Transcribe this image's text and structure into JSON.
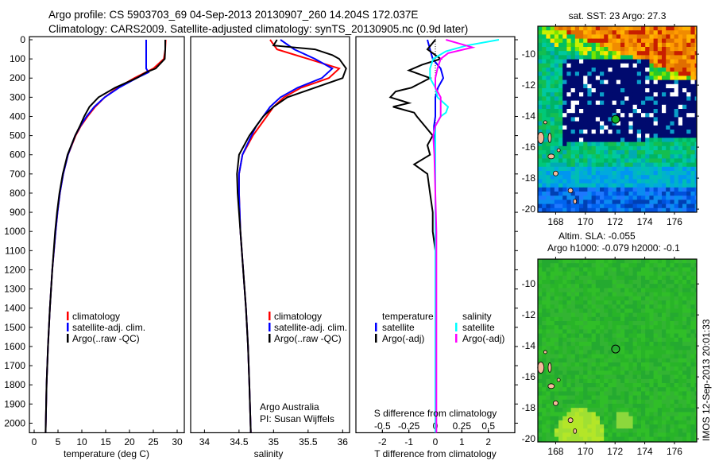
{
  "header": {
    "line1": "Argo profile: CS 5903703_69 04-Sep-2013 20130907_260 14.204S 172.037E",
    "line2": "Climatology: CARS2009. Satellite-adjusted climatology: synTS_20130905.nc (0.9d later)"
  },
  "depth_ticks": [
    "0",
    "100",
    "200",
    "300",
    "400",
    "500",
    "600",
    "700",
    "800",
    "900",
    "1000",
    "1100",
    "1200",
    "1300",
    "1400",
    "1500",
    "1600",
    "1700",
    "1800",
    "1900",
    "2000"
  ],
  "chart_data": [
    {
      "type": "line",
      "name": "temperature-profile",
      "xlabel": "temperature (deg C)",
      "ylabel": "depth",
      "xlim": [
        -1,
        31.5
      ],
      "ylim": [
        2050,
        0
      ],
      "xticks": [
        0,
        5,
        10,
        15,
        20,
        25,
        30
      ],
      "xtick_labels": [
        "0",
        "5",
        "10",
        "15",
        "20",
        "25",
        "30"
      ],
      "legend": {
        "placement": "bottom-left",
        "entries": [
          "climatology",
          "satellite-adj. clim.",
          "Argo(..raw -QC)"
        ]
      },
      "series": [
        {
          "name": "climatology",
          "color": "#ff0000",
          "depth": [
            0,
            50,
            100,
            150,
            200,
            250,
            300,
            350,
            400,
            450,
            500,
            600,
            700,
            800,
            900,
            1000,
            1200,
            1400,
            1600,
            1800,
            2050
          ],
          "values": [
            27.6,
            27.5,
            27.2,
            25.0,
            21.0,
            17.5,
            14.8,
            12.8,
            11.2,
            9.8,
            8.7,
            7.1,
            6.1,
            5.4,
            4.9,
            4.5,
            3.8,
            3.3,
            2.9,
            2.6,
            2.4
          ]
        },
        {
          "name": "satellite-adj. clim.",
          "color": "#0000ff",
          "depth": [
            0,
            50,
            100,
            150,
            170,
            200,
            250,
            300,
            350,
            400,
            450,
            500,
            600,
            700,
            800,
            900,
            1000,
            1200,
            1400,
            1600,
            1800,
            2050
          ],
          "values": [
            23.5,
            23.5,
            23.5,
            23.5,
            24.0,
            21.5,
            17.8,
            14.8,
            12.6,
            11.0,
            9.7,
            8.6,
            7.1,
            6.1,
            5.4,
            4.9,
            4.5,
            3.8,
            3.3,
            2.9,
            2.6,
            2.4
          ]
        },
        {
          "name": "Argo(..raw -QC)",
          "color": "#000000",
          "depth": [
            0,
            50,
            100,
            150,
            170,
            200,
            250,
            300,
            350,
            400,
            450,
            500,
            600,
            700,
            800,
            900,
            1000,
            1200,
            1400,
            1600,
            1800,
            2050
          ],
          "values": [
            27.5,
            27.5,
            27.4,
            25.5,
            23.5,
            21.5,
            17.0,
            13.5,
            11.6,
            10.5,
            9.6,
            8.6,
            7.0,
            6.0,
            5.3,
            4.8,
            4.4,
            3.8,
            3.3,
            2.9,
            2.6,
            2.4
          ]
        }
      ]
    },
    {
      "type": "line",
      "name": "salinity-profile",
      "xlabel": "salinity",
      "xlim": [
        33.8,
        36.1
      ],
      "ylim": [
        2050,
        0
      ],
      "xticks": [
        34,
        34.5,
        35,
        35.5,
        36
      ],
      "xtick_labels": [
        "34",
        "34.5",
        "35",
        "35.5",
        "36"
      ],
      "legend": {
        "placement": "bottom-right",
        "entries": [
          "climatology",
          "satellite-adj. clim.",
          "Argo(..raw -QC)"
        ]
      },
      "annotation": [
        "Argo Australia",
        "PI: Susan Wijffels"
      ],
      "series": [
        {
          "name": "climatology",
          "color": "#ff0000",
          "depth": [
            0,
            50,
            100,
            150,
            200,
            250,
            300,
            350,
            400,
            450,
            500,
            600,
            700,
            800,
            1000,
            1200,
            1400,
            1600,
            1800,
            2050
          ],
          "values": [
            34.95,
            35.05,
            35.5,
            35.95,
            35.8,
            35.4,
            35.15,
            35.0,
            34.9,
            34.8,
            34.7,
            34.55,
            34.5,
            34.5,
            34.52,
            34.56,
            34.6,
            34.63,
            34.65,
            34.67
          ]
        },
        {
          "name": "satellite-adj. clim.",
          "color": "#0000ff",
          "depth": [
            0,
            50,
            100,
            150,
            200,
            250,
            300,
            350,
            400,
            450,
            500,
            600,
            700,
            800,
            1000,
            1200,
            1400,
            1600,
            1800,
            2050
          ],
          "values": [
            35.1,
            35.3,
            35.6,
            35.85,
            35.7,
            35.35,
            35.1,
            34.95,
            34.85,
            34.75,
            34.68,
            34.55,
            34.5,
            34.5,
            34.52,
            34.56,
            34.6,
            34.63,
            34.65,
            34.67
          ]
        },
        {
          "name": "Argo(..raw -QC)",
          "color": "#000000",
          "depth": [
            0,
            30,
            50,
            80,
            100,
            150,
            200,
            250,
            300,
            350,
            400,
            450,
            500,
            600,
            700,
            800,
            1000,
            1200,
            1400,
            1600,
            1800,
            2050
          ],
          "values": [
            35.05,
            35.0,
            35.6,
            35.85,
            35.95,
            36.05,
            36.0,
            35.6,
            35.2,
            35.0,
            34.85,
            34.75,
            34.65,
            34.5,
            34.47,
            34.48,
            34.52,
            34.56,
            34.6,
            34.63,
            34.65,
            34.67
          ]
        }
      ]
    },
    {
      "type": "line",
      "name": "difference-profile",
      "xlabel": "T difference from climatology",
      "x2label": "S difference from climatology",
      "xlim": [
        -3,
        3
      ],
      "ylim": [
        2050,
        0
      ],
      "xticks": [
        -2,
        -1,
        0,
        1,
        2
      ],
      "xtick_labels": [
        "-2",
        "-1",
        "0",
        "1",
        "2"
      ],
      "x2ticks": [
        -0.5,
        -0.25,
        0,
        0.25,
        0.5
      ],
      "x2tick_labels": [
        "-0.5",
        "-0.25",
        "0",
        "0.25",
        "0.5"
      ],
      "legend": {
        "placement": "bottom",
        "titles": [
          "temperature",
          "salinity"
        ],
        "entries": [
          "satellite",
          "Argo(-adj)",
          "satellite",
          "Argo(-adj)"
        ]
      },
      "series": [
        {
          "name": "temperature satellite",
          "color": "#0000ff",
          "depth": [
            0,
            50,
            100,
            150,
            200,
            250,
            300,
            350,
            400,
            450,
            500,
            600,
            800,
            1000,
            1500,
            2050
          ],
          "values": [
            -0.3,
            -0.2,
            -0.1,
            0.2,
            0.3,
            0.1,
            0.0,
            0.0,
            0.0,
            -0.05,
            -0.05,
            0.0,
            0.0,
            0.0,
            0.0,
            0.0
          ]
        },
        {
          "name": "temperature Argo(-adj)",
          "color": "#000000",
          "depth": [
            0,
            50,
            100,
            130,
            160,
            200,
            250,
            270,
            300,
            330,
            350,
            380,
            400,
            450,
            500,
            550,
            600,
            650,
            700,
            800,
            900,
            1000,
            1100,
            1500,
            2050
          ],
          "values": [
            0,
            -0.3,
            0.2,
            -0.5,
            -1.0,
            -0.2,
            -0.9,
            -1.5,
            -1.7,
            -1.0,
            -1.6,
            -0.8,
            -0.7,
            -0.4,
            -0.1,
            -0.3,
            -0.2,
            -0.8,
            -0.3,
            -0.2,
            -0.1,
            -0.1,
            0.0,
            0.0,
            0.0
          ]
        },
        {
          "name": "salinity satellite",
          "color": "#00ffff",
          "depth": [
            0,
            30,
            60,
            100,
            150,
            200,
            250,
            300,
            350,
            380,
            400,
            450,
            500,
            600,
            800,
            1000,
            1500,
            2050
          ],
          "values": [
            0.6,
            0.3,
            0.1,
            -0.02,
            -0.05,
            -0.05,
            0.0,
            0.02,
            0.12,
            0.1,
            0.05,
            0.0,
            0.0,
            0.0,
            0.0,
            0.0,
            0.0,
            0.0
          ]
        },
        {
          "name": "salinity Argo(-adj)",
          "color": "#ff00ff",
          "depth": [
            0,
            40,
            70,
            100,
            150,
            200,
            250,
            300,
            350,
            400,
            450,
            500,
            600,
            800,
            1000,
            1500,
            2050
          ],
          "values": [
            0.1,
            0.35,
            0.12,
            0.05,
            0.02,
            0.0,
            0.0,
            0.05,
            0.05,
            0.05,
            0.0,
            -0.02,
            -0.01,
            0.0,
            0.01,
            0.01,
            0.01
          ]
        }
      ]
    },
    {
      "type": "heatmap",
      "name": "sst-map",
      "title": "sat. SST: 23 Argo: 27.3",
      "xlim": [
        166.8,
        177.5
      ],
      "ylim": [
        -20.2,
        -8.2
      ],
      "xtick_labels": [
        "168",
        "170",
        "172",
        "174",
        "176"
      ],
      "ytick_labels": [
        "-10",
        "-12",
        "-14",
        "-16",
        "-18",
        "-20"
      ],
      "argo_position": {
        "lon": 172.037,
        "lat": -14.204
      }
    },
    {
      "type": "heatmap",
      "name": "sla-map",
      "title": "Altim. SLA: -0.055",
      "subtitle": "Argo h1000: -0.079 h2000: -0.1",
      "xlim": [
        166.8,
        177.5
      ],
      "ylim": [
        -20.2,
        -8.4
      ],
      "xtick_labels": [
        "168",
        "170",
        "172",
        "174",
        "176"
      ],
      "ytick_labels": [
        "-10",
        "-12",
        "-14",
        "-16",
        "-18",
        "-20"
      ],
      "argo_position": {
        "lon": 172.037,
        "lat": -14.204
      }
    }
  ],
  "footer": {
    "timestamp": "IMOS 12-Sep-2013 20:01:33"
  }
}
